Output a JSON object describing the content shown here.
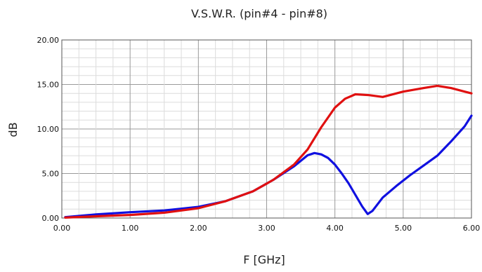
{
  "chart_data": {
    "type": "line",
    "title": "V.S.W.R. (pin#4 - pin#8)",
    "xlabel": "F [GHz]",
    "ylabel": "dB",
    "xlim": [
      0,
      6
    ],
    "ylim": [
      0,
      20
    ],
    "grid": true,
    "x_ticks": [
      0,
      1,
      2,
      3,
      4,
      5,
      6
    ],
    "x_tick_labels": [
      "0.00",
      "1.00",
      "2.00",
      "3.00",
      "4.00",
      "5.00",
      "6.00"
    ],
    "y_ticks": [
      0,
      5,
      10,
      15,
      20
    ],
    "y_tick_labels": [
      "0.00",
      "5.00",
      "10.00",
      "15.00",
      "20.00"
    ],
    "series": [
      {
        "color": "#1010e0",
        "points": [
          [
            0.05,
            0.1
          ],
          [
            0.5,
            0.4
          ],
          [
            1.0,
            0.65
          ],
          [
            1.5,
            0.85
          ],
          [
            2.0,
            1.25
          ],
          [
            2.4,
            1.9
          ],
          [
            2.8,
            3.0
          ],
          [
            3.1,
            4.3
          ],
          [
            3.4,
            5.8
          ],
          [
            3.6,
            7.05
          ],
          [
            3.7,
            7.3
          ],
          [
            3.8,
            7.15
          ],
          [
            3.9,
            6.75
          ],
          [
            4.0,
            6.0
          ],
          [
            4.1,
            5.0
          ],
          [
            4.2,
            3.9
          ],
          [
            4.3,
            2.6
          ],
          [
            4.4,
            1.3
          ],
          [
            4.48,
            0.45
          ],
          [
            4.55,
            0.8
          ],
          [
            4.7,
            2.3
          ],
          [
            4.9,
            3.6
          ],
          [
            5.1,
            4.8
          ],
          [
            5.3,
            5.9
          ],
          [
            5.5,
            7.0
          ],
          [
            5.7,
            8.6
          ],
          [
            5.9,
            10.3
          ],
          [
            6.0,
            11.5
          ]
        ]
      },
      {
        "color": "#e01010",
        "points": [
          [
            0.05,
            0.05
          ],
          [
            0.5,
            0.2
          ],
          [
            1.0,
            0.35
          ],
          [
            1.5,
            0.6
          ],
          [
            2.0,
            1.1
          ],
          [
            2.4,
            1.9
          ],
          [
            2.8,
            3.0
          ],
          [
            3.1,
            4.3
          ],
          [
            3.4,
            6.0
          ],
          [
            3.6,
            7.7
          ],
          [
            3.8,
            10.2
          ],
          [
            4.0,
            12.4
          ],
          [
            4.15,
            13.4
          ],
          [
            4.3,
            13.9
          ],
          [
            4.5,
            13.8
          ],
          [
            4.7,
            13.6
          ],
          [
            5.0,
            14.2
          ],
          [
            5.3,
            14.6
          ],
          [
            5.5,
            14.85
          ],
          [
            5.7,
            14.6
          ],
          [
            5.9,
            14.2
          ],
          [
            6.0,
            14.0
          ]
        ]
      }
    ]
  }
}
